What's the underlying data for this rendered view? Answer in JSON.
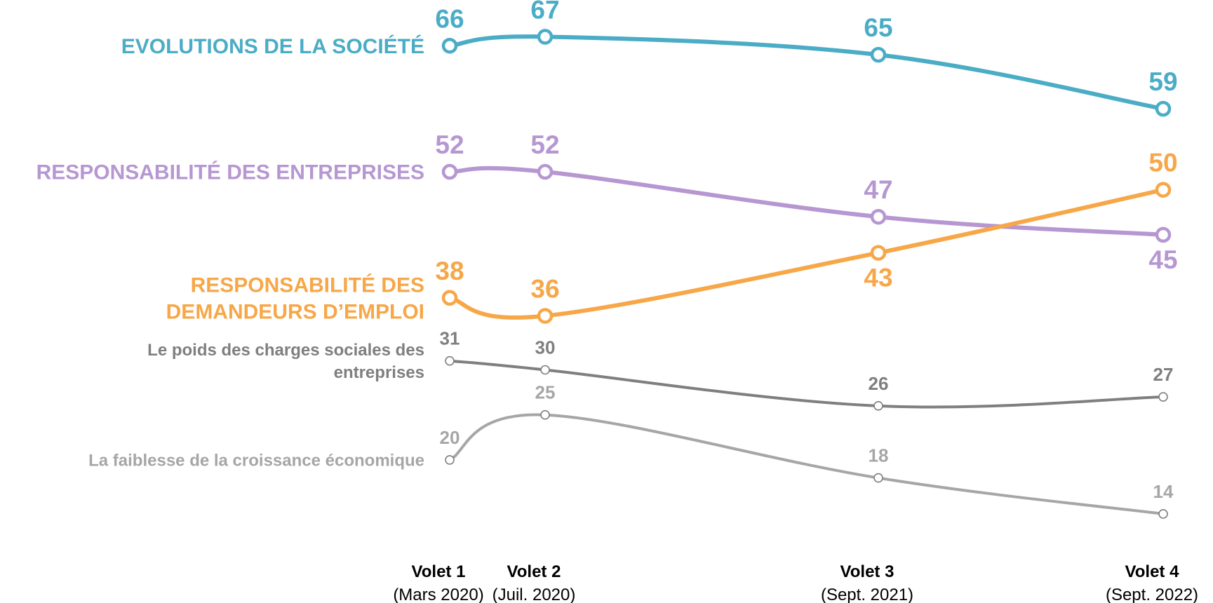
{
  "chart_data": {
    "type": "line",
    "x": [
      "Volet 1",
      "Volet 2",
      "Volet 3",
      "Volet 4"
    ],
    "x_dates": [
      "(Mars 2020)",
      "(Juil. 2020)",
      "(Sept. 2021)",
      "(Sept. 2022)"
    ],
    "grid": false,
    "legend": "left-inline",
    "series": [
      {
        "name": "EVOLUTIONS DE LA SOCIÉTÉ",
        "label_lines": [
          "EVOLUTIONS DE LA SOCIÉTÉ"
        ],
        "values": [
          66,
          67,
          65,
          59
        ],
        "color": "#4BACC6",
        "emphasis": "major"
      },
      {
        "name": "RESPONSABILITÉ DES ENTREPRISES",
        "label_lines": [
          "RESPONSABILITÉ DES ENTREPRISES"
        ],
        "values": [
          52,
          52,
          47,
          45
        ],
        "color": "#B697D2",
        "emphasis": "major"
      },
      {
        "name": "RESPONSABILITÉ DES DEMANDEURS D’EMPLOI",
        "label_lines": [
          "RESPONSABILITÉ DES",
          "DEMANDEURS D’EMPLOI"
        ],
        "values": [
          38,
          36,
          43,
          50
        ],
        "color": "#F7A748",
        "emphasis": "major"
      },
      {
        "name": "Le poids des charges sociales des entreprises",
        "label_lines": [
          "Le poids des charges sociales des",
          "entreprises"
        ],
        "values": [
          31,
          30,
          26,
          27
        ],
        "color": "#7F7F7F",
        "emphasis": "minor"
      },
      {
        "name": "La faiblesse de la croissance économique",
        "label_lines": [
          "La faiblesse de la croissance économique"
        ],
        "values": [
          20,
          25,
          18,
          14
        ],
        "color": "#A6A6A6",
        "emphasis": "minor"
      }
    ]
  }
}
